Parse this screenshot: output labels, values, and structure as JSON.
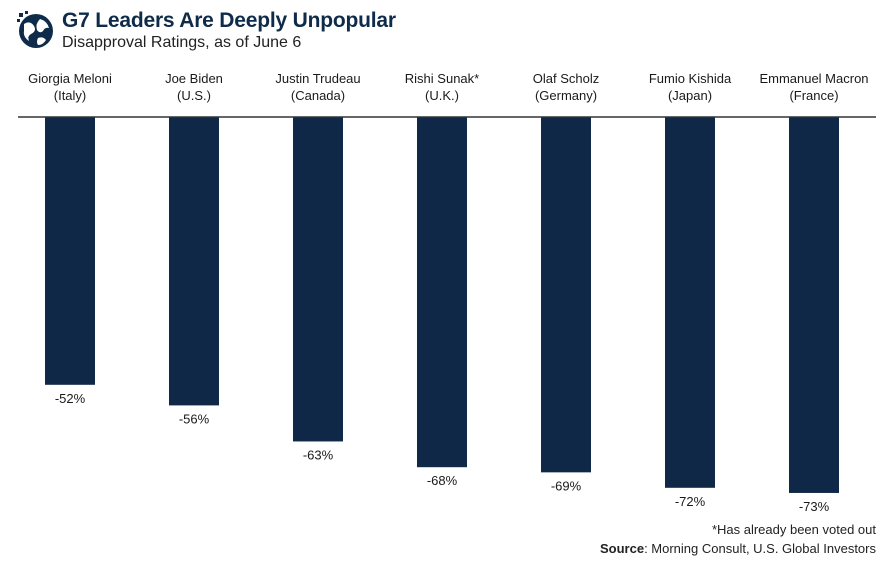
{
  "header": {
    "title": "G7 Leaders Are Deeply Unpopular",
    "subtitle": "Disapproval Ratings, as of June 6",
    "logo_icon": "globe-icon"
  },
  "colors": {
    "bar": "#0f2847",
    "title": "#0f2b4a",
    "axis": "#333333",
    "text": "#1a1a1a"
  },
  "chart_data": {
    "type": "bar",
    "categories": [
      [
        "Giorgia Meloni",
        "(Italy)"
      ],
      [
        "Joe Biden",
        "(U.S.)"
      ],
      [
        "Justin Trudeau",
        "(Canada)"
      ],
      [
        "Rishi Sunak*",
        "(U.K.)"
      ],
      [
        "Olaf Scholz",
        "(Germany)"
      ],
      [
        "Fumio Kishida",
        "(Japan)"
      ],
      [
        "Emmanuel Macron",
        "(France)"
      ]
    ],
    "values": [
      -52,
      -56,
      -63,
      -68,
      -69,
      -72,
      -73
    ],
    "value_labels": [
      "-52%",
      "-56%",
      "-63%",
      "-68%",
      "-69%",
      "-72%",
      "-73%"
    ],
    "ylim": [
      -80,
      0
    ],
    "title": "G7 Leaders Are Deeply Unpopular",
    "subtitle": "Disapproval Ratings, as of June 6",
    "grid": false,
    "legend": "none"
  },
  "footer": {
    "footnote": "*Has already been voted out",
    "source_label": "Source",
    "source_text": ": Morning Consult, U.S. Global Investors"
  }
}
